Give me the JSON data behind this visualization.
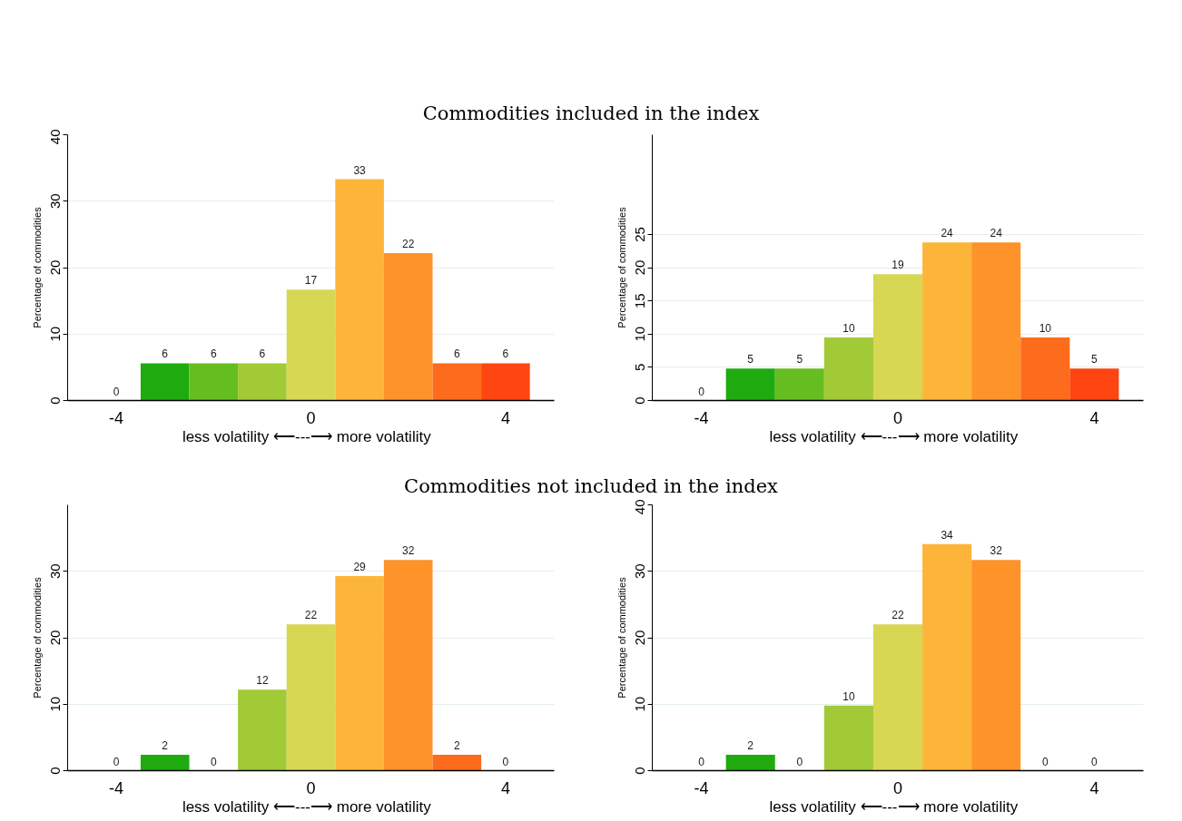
{
  "chart_data": [
    {
      "type": "histogram",
      "title": "Commodities included in the index",
      "xlabel": "less volatility  ⟵---⟶  more volatility",
      "ylabel": "Percentage of commodities",
      "bins": [
        -4.5,
        -3.5,
        -2.5,
        -1.5,
        -0.5,
        0.5,
        1.5,
        2.5,
        3.5,
        4.5
      ],
      "values": [
        0,
        5.6,
        5.6,
        5.6,
        16.7,
        33.3,
        22.2,
        5.6,
        5.6
      ],
      "value_labels": [
        "0",
        "6",
        "6",
        "6",
        "17",
        "33",
        "22",
        "6",
        "6"
      ],
      "colors": [
        "#0c8f0c",
        "#1fab0f",
        "#66bd20",
        "#a2c936",
        "#d7d754",
        "#fdb539",
        "#fd9329",
        "#fd6b1c",
        "#fe4512"
      ],
      "xlim": [
        -5,
        5
      ],
      "xticks": [
        -4,
        0,
        4
      ],
      "ylim": [
        0,
        40
      ],
      "yticks": [
        0,
        10,
        20,
        30,
        40
      ],
      "grid": "y"
    },
    {
      "type": "histogram",
      "xlabel": "less volatility  ⟵---⟶  more volatility",
      "ylabel": "Percentage of commodities",
      "bins": [
        -4.5,
        -3.5,
        -2.5,
        -1.5,
        -0.5,
        0.5,
        1.5,
        2.5,
        3.5,
        4.5
      ],
      "values": [
        0,
        4.8,
        4.8,
        9.5,
        19.0,
        23.8,
        23.8,
        9.5,
        4.8
      ],
      "value_labels": [
        "0",
        "5",
        "5",
        "10",
        "19",
        "24",
        "24",
        "10",
        "5"
      ],
      "colors": [
        "#0c8f0c",
        "#1fab0f",
        "#66bd20",
        "#a2c936",
        "#d7d754",
        "#fdb539",
        "#fd9329",
        "#fd6b1c",
        "#fe4512"
      ],
      "xlim": [
        -5,
        5
      ],
      "xticks": [
        -4,
        0,
        4
      ],
      "ylim": [
        0,
        40
      ],
      "yticks": [
        0,
        5,
        10,
        15,
        20,
        25
      ],
      "grid": "y"
    },
    {
      "type": "histogram",
      "title": "Commodities not included in the index",
      "xlabel": "less volatility  ⟵---⟶  more volatility",
      "ylabel": "Percentage of commodities",
      "bins": [
        -4.5,
        -3.5,
        -2.5,
        -1.5,
        -0.5,
        0.5,
        1.5,
        2.5,
        3.5,
        4.5
      ],
      "values": [
        0,
        2.4,
        0,
        12.2,
        22.0,
        29.3,
        31.7,
        2.4,
        0
      ],
      "value_labels": [
        "0",
        "2",
        "0",
        "12",
        "22",
        "29",
        "32",
        "2",
        "0"
      ],
      "colors": [
        "#0c8f0c",
        "#1fab0f",
        "#66bd20",
        "#a2c936",
        "#d7d754",
        "#fdb539",
        "#fd9329",
        "#fd6b1c",
        "#fe4512"
      ],
      "xlim": [
        -5,
        5
      ],
      "xticks": [
        -4,
        0,
        4
      ],
      "ylim": [
        0,
        40
      ],
      "yticks": [
        0,
        10,
        20,
        30
      ],
      "grid": "y"
    },
    {
      "type": "histogram",
      "xlabel": "less volatility  ⟵---⟶  more volatility",
      "ylabel": "Percentage of commodities",
      "bins": [
        -4.5,
        -3.5,
        -2.5,
        -1.5,
        -0.5,
        0.5,
        1.5,
        2.5,
        3.5,
        4.5
      ],
      "values": [
        0,
        2.4,
        0,
        9.8,
        22.0,
        34.1,
        31.7,
        0,
        0
      ],
      "value_labels": [
        "0",
        "2",
        "0",
        "10",
        "22",
        "34",
        "32",
        "0",
        "0"
      ],
      "colors": [
        "#0c8f0c",
        "#1fab0f",
        "#66bd20",
        "#a2c936",
        "#d7d754",
        "#fdb539",
        "#fd9329",
        "#fd6b1c",
        "#fe4512"
      ],
      "xlim": [
        -5,
        5
      ],
      "xticks": [
        -4,
        0,
        4
      ],
      "ylim": [
        0,
        40
      ],
      "yticks": [
        0,
        10,
        20,
        30,
        40
      ],
      "grid": "y"
    }
  ]
}
